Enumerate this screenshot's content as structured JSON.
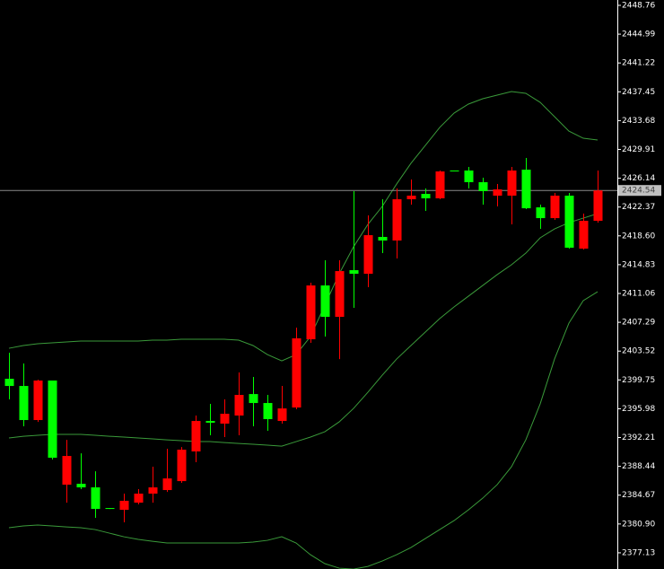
{
  "chart_data": {
    "type": "candlestick",
    "up_color": "#ff0000",
    "down_color": "#00ff00",
    "open": [
      2399.9,
      2398.96,
      2394.5,
      2399.67,
      2386.04,
      2386.16,
      2385.69,
      2382.99,
      2382.75,
      2383.69,
      2384.87,
      2385.34,
      2386.51,
      2390.39,
      2394.38,
      2394.03,
      2395.09,
      2397.9,
      2396.73,
      2394.38,
      2396.14,
      2405.07,
      2412.11,
      2408.0,
      2414.11,
      2413.64,
      2418.46,
      2417.99,
      2423.39,
      2424.09,
      2423.51,
      2427.15,
      2427.15,
      2425.62,
      2423.86,
      2423.86,
      2427.26,
      2422.33,
      2420.92,
      2423.86,
      2416.93,
      2420.57
    ],
    "high": [
      2403.31,
      2401.9,
      2399.78,
      2399.67,
      2391.91,
      2390.15,
      2387.8,
      2382.99,
      2384.87,
      2385.46,
      2388.39,
      2390.74,
      2390.97,
      2395.09,
      2396.61,
      2397.2,
      2400.72,
      2400.14,
      2397.79,
      2398.96,
      2406.59,
      2412.47,
      2415.4,
      2415.4,
      2424.45,
      2421.27,
      2423.39,
      2424.8,
      2425.97,
      2424.8,
      2427.15,
      2427.15,
      2427.62,
      2426.21,
      2425.38,
      2427.62,
      2428.79,
      2422.68,
      2424.21,
      2424.21,
      2421.51,
      2427.15
    ],
    "low": [
      2397.2,
      2393.68,
      2394.26,
      2389.33,
      2383.69,
      2385.46,
      2381.7,
      2382.87,
      2381.11,
      2383.46,
      2383.69,
      2385.1,
      2386.28,
      2388.98,
      2392.5,
      2392.27,
      2392.5,
      2393.68,
      2393.09,
      2394.03,
      2395.91,
      2404.6,
      2405.42,
      2402.48,
      2409.18,
      2411.88,
      2416.34,
      2415.64,
      2422.68,
      2421.86,
      2423.39,
      2427.03,
      2424.8,
      2422.68,
      2422.45,
      2420.1,
      2422.1,
      2419.51,
      2420.69,
      2416.93,
      2416.81,
      2420.33
    ],
    "close": [
      2398.96,
      2394.5,
      2399.67,
      2389.57,
      2389.8,
      2385.69,
      2382.87,
      2382.87,
      2383.93,
      2384.87,
      2385.69,
      2386.86,
      2390.62,
      2394.38,
      2394.15,
      2395.32,
      2397.79,
      2396.73,
      2394.62,
      2396.02,
      2405.19,
      2412.11,
      2408.0,
      2413.99,
      2413.64,
      2418.69,
      2417.99,
      2423.39,
      2423.86,
      2423.51,
      2427.03,
      2427.03,
      2425.62,
      2424.45,
      2424.68,
      2427.15,
      2422.21,
      2420.92,
      2423.86,
      2417.05,
      2420.57,
      2424.54
    ],
    "overlays": [
      {
        "color": "#3a9a3a",
        "values": [
          2403.89,
          2404.25,
          2404.48,
          2404.6,
          2404.72,
          2404.83,
          2404.83,
          2404.83,
          2404.83,
          2404.83,
          2404.95,
          2404.95,
          2405.07,
          2405.07,
          2405.07,
          2405.07,
          2404.95,
          2404.25,
          2403.07,
          2402.25,
          2403.07,
          2405.42,
          2409.53,
          2413.64,
          2417.16,
          2420.1,
          2422.45,
          2425.38,
          2428.09,
          2430.43,
          2432.78,
          2434.66,
          2435.84,
          2436.54,
          2437.01,
          2437.48,
          2437.25,
          2436.07,
          2434.19,
          2432.31,
          2431.37,
          2431.14
        ]
      },
      {
        "color": "#3a9a3a",
        "values": [
          2392.15,
          2392.38,
          2392.5,
          2392.62,
          2392.62,
          2392.62,
          2392.5,
          2392.38,
          2392.27,
          2392.15,
          2392.03,
          2391.91,
          2391.8,
          2391.68,
          2391.68,
          2391.56,
          2391.44,
          2391.33,
          2391.21,
          2391.09,
          2391.68,
          2392.27,
          2392.97,
          2394.26,
          2396.02,
          2398.14,
          2400.37,
          2402.48,
          2404.25,
          2406.01,
          2407.77,
          2409.3,
          2410.7,
          2412.11,
          2413.52,
          2414.82,
          2416.34,
          2418.34,
          2419.51,
          2420.33,
          2420.92,
          2421.51
        ]
      },
      {
        "color": "#3a9a3a",
        "values": [
          2380.41,
          2380.64,
          2380.76,
          2380.64,
          2380.52,
          2380.41,
          2380.17,
          2379.7,
          2379.23,
          2378.88,
          2378.64,
          2378.41,
          2378.41,
          2378.41,
          2378.41,
          2378.41,
          2378.41,
          2378.53,
          2378.76,
          2379.23,
          2378.41,
          2376.88,
          2375.71,
          2375.12,
          2375.0,
          2375.35,
          2376.06,
          2376.88,
          2377.82,
          2379.0,
          2380.17,
          2381.34,
          2382.75,
          2384.28,
          2386.04,
          2388.39,
          2391.91,
          2396.61,
          2402.48,
          2407.18,
          2410.12,
          2411.29
        ]
      }
    ],
    "last_price": 2424.54,
    "ylim": [
      2375.01,
      2449.46
    ],
    "yticks": [
      2448.76,
      2444.99,
      2441.22,
      2437.45,
      2433.68,
      2429.91,
      2426.14,
      2422.37,
      {
        "value": 2418.6,
        "label": "2418.60"
      },
      2414.83,
      2411.06,
      2407.29,
      2403.52,
      2399.75,
      2395.98,
      2392.21,
      2388.44,
      2384.67,
      {
        "value": 2380.9,
        "label": "2380.90"
      },
      2377.13
    ]
  }
}
